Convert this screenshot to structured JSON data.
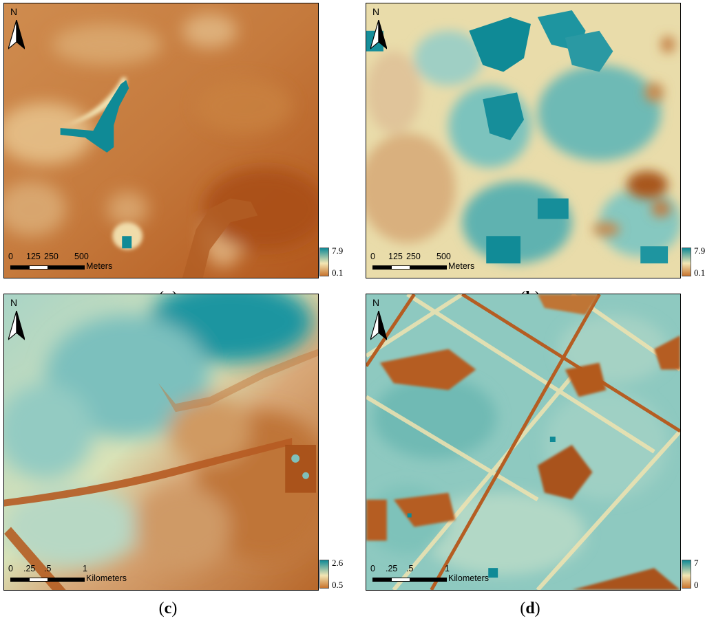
{
  "colors": {
    "high": "#0f8a96",
    "mid_high": "#7cc3bd",
    "mid": "#f3e6b3",
    "mid_low": "#d9a56e",
    "low": "#b35a1f"
  },
  "north_label": "N",
  "panels": [
    {
      "caption_open": "(",
      "caption_letter": "a",
      "caption_close": ")",
      "scale_ticks": [
        "0",
        "125",
        "250",
        "500"
      ],
      "scale_unit": "Meters",
      "legend_max": "7.9",
      "legend_min": "0.1"
    },
    {
      "caption_open": "(",
      "caption_letter": "b",
      "caption_close": ")",
      "scale_ticks": [
        "0",
        "125",
        "250",
        "500"
      ],
      "scale_unit": "Meters",
      "legend_max": "7.9",
      "legend_min": "0.1"
    },
    {
      "caption_open": "(",
      "caption_letter": "c",
      "caption_close": ")",
      "scale_ticks": [
        "0",
        ".25",
        ".5",
        "1"
      ],
      "scale_unit": "Kilometers",
      "legend_max": "2.6",
      "legend_min": "0.5"
    },
    {
      "caption_open": "(",
      "caption_letter": "d",
      "caption_close": ")",
      "scale_ticks": [
        "0",
        ".25",
        ".5",
        "1"
      ],
      "scale_unit": "Kilometers",
      "legend_max": "7",
      "legend_min": "0"
    }
  ]
}
